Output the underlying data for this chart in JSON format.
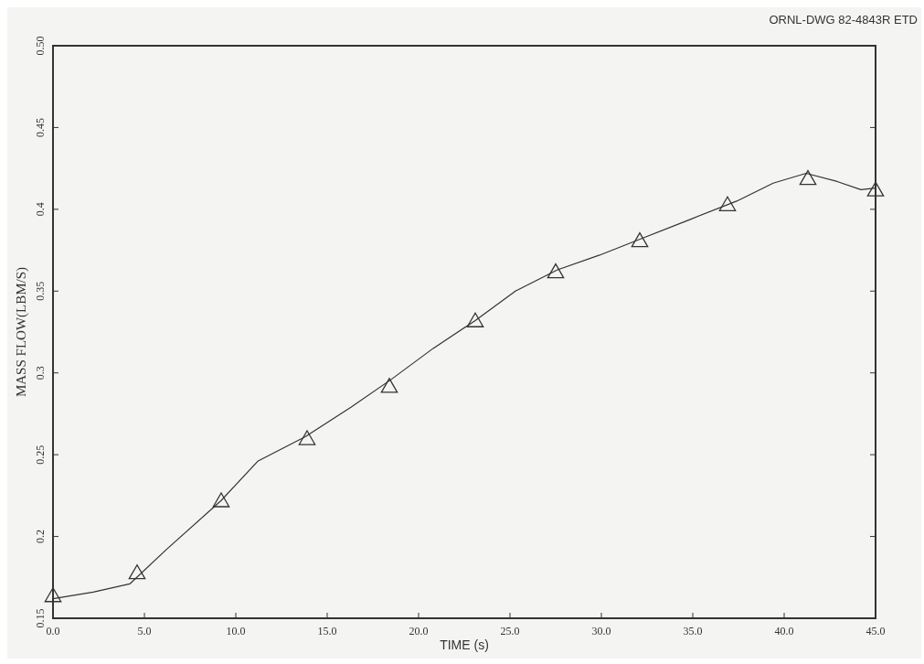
{
  "chart_data": {
    "type": "line",
    "xlabel": "TIME (s)",
    "ylabel": "MASS FLOW(LBM/S)",
    "annotations": [
      "ORNL-DWG 82-4843R ETD"
    ],
    "xlim": [
      0,
      45
    ],
    "ylim": [
      0.15,
      0.5
    ],
    "xticks": [
      {
        "value": 0,
        "label": "0.0"
      },
      {
        "value": 5,
        "label": "5.0"
      },
      {
        "value": 10,
        "label": "10.0"
      },
      {
        "value": 15,
        "label": "15.0"
      },
      {
        "value": 20,
        "label": "20.0"
      },
      {
        "value": 25,
        "label": "25.0"
      },
      {
        "value": 30,
        "label": "30.0"
      },
      {
        "value": 35,
        "label": "35.0"
      },
      {
        "value": 40,
        "label": "40.0"
      },
      {
        "value": 45,
        "label": "45.0"
      }
    ],
    "yticks": [
      0.15,
      0.2,
      0.25,
      0.3,
      0.35,
      0.4,
      0.45,
      {
        "value": 0.5,
        "label": "0.50"
      }
    ],
    "grid": false,
    "series": [
      {
        "color": "#333333",
        "marker": "none",
        "x": [
          0,
          2.2,
          4.2,
          6.2,
          9.2,
          11.2,
          13.8,
          16.3,
          18.5,
          20.8,
          23.1,
          25.3,
          27.6,
          29.9,
          32.4,
          34.9,
          37.4,
          39.4,
          41.2,
          42.9,
          44.2,
          45
        ],
        "values": [
          0.162,
          0.166,
          0.171,
          0.192,
          0.222,
          0.246,
          0.261,
          0.279,
          0.296,
          0.315,
          0.332,
          0.35,
          0.363,
          0.372,
          0.383,
          0.394,
          0.405,
          0.416,
          0.422,
          0.417,
          0.412,
          0.413
        ]
      },
      {
        "type": "scatter",
        "color": "#333333",
        "marker": "triangle",
        "x": [
          0,
          4.6,
          9.2,
          13.9,
          18.4,
          23.1,
          27.5,
          32.1,
          36.9,
          41.3,
          45
        ],
        "values": [
          0.163,
          0.177,
          0.221,
          0.259,
          0.291,
          0.331,
          0.361,
          0.38,
          0.402,
          0.418,
          0.411
        ]
      }
    ]
  }
}
